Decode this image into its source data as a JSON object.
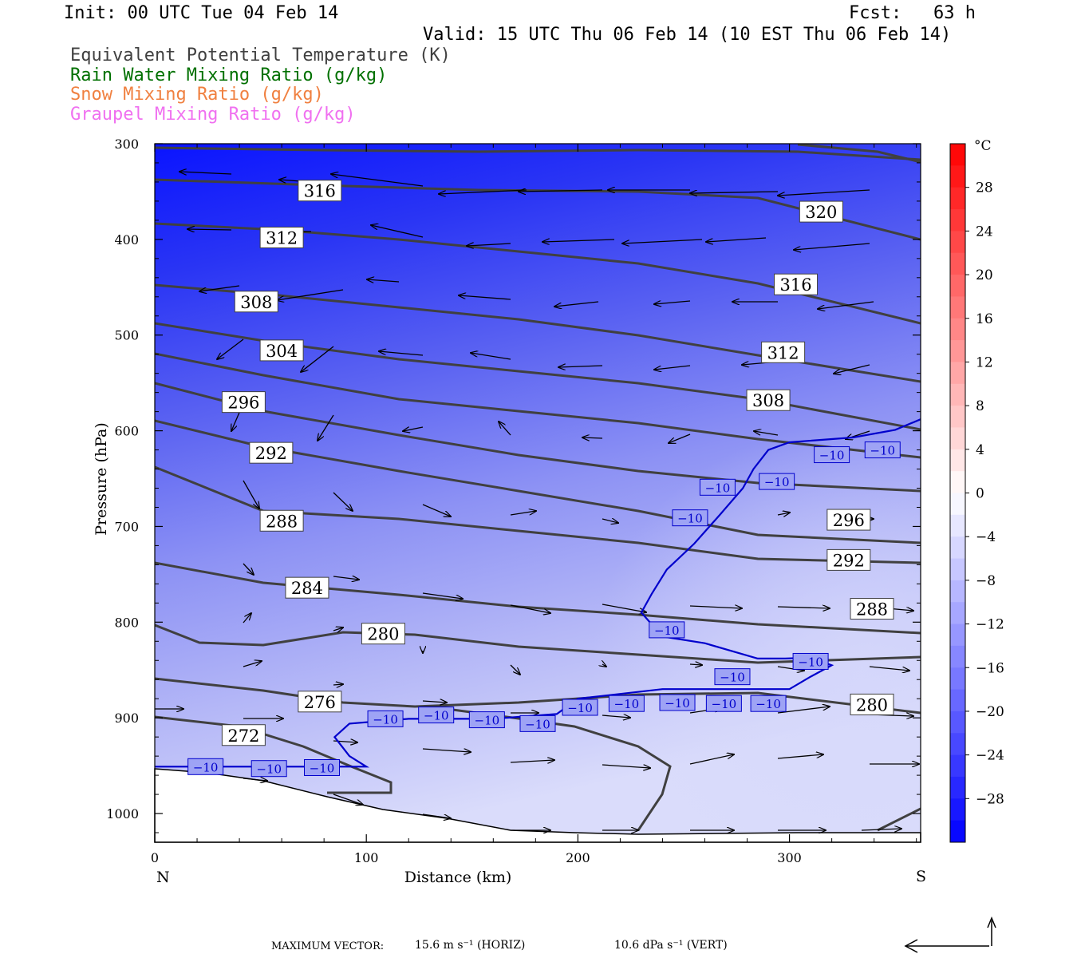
{
  "header": {
    "init": "Init: 00 UTC Tue 04 Feb 14",
    "fcst": "Fcst:   63 h",
    "valid": "Valid: 15 UTC Thu 06 Feb 14 (10 EST Thu 06 Feb 14)",
    "legend": [
      {
        "text": "Equivalent Potential Temperature (K)",
        "color": "#404040"
      },
      {
        "text": "Rain Water Mixing Ratio (g/kg)",
        "color": "#007000"
      },
      {
        "text": "Snow Mixing Ratio (g/kg)",
        "color": "#f08040"
      },
      {
        "text": "Graupel Mixing Ratio (g/kg)",
        "color": "#f070f0"
      }
    ]
  },
  "footer": {
    "max_vector_label": "MAXIMUM VECTOR:",
    "horiz": "15.6 m s⁻¹ (HORIZ)",
    "vert": "10.6 dPa s⁻¹ (VERT)"
  },
  "chart_data": {
    "type": "cross-section",
    "xlabel": "Distance (km)",
    "ylabel": "Pressure (hPa)",
    "x_range": [
      0,
      362
    ],
    "y_range": [
      300,
      1030
    ],
    "x_ticks": [
      0,
      100,
      200,
      300
    ],
    "y_ticks": [
      300,
      400,
      500,
      600,
      700,
      800,
      900,
      1000
    ],
    "x_end_labels": {
      "left": "N",
      "right": "S"
    },
    "colorbar": {
      "unit": "°C",
      "range": [
        -32,
        32
      ],
      "tick_values": [
        -28,
        -24,
        -20,
        -16,
        -12,
        -8,
        -4,
        0,
        4,
        8,
        12,
        16,
        20,
        24,
        28
      ],
      "tick_labels": [
        "−28",
        "−24",
        "−20",
        "−16",
        "−12",
        "−8",
        "−4",
        "0",
        "4",
        "8",
        "12",
        "16",
        "20",
        "24",
        "28"
      ],
      "cold_color": "#0000ff",
      "zero_color": "#ffffff",
      "warm_color": "#ff0000"
    },
    "theta_e_labels": [
      {
        "value": "316",
        "x": 78,
        "p": 349
      },
      {
        "value": "312",
        "x": 60,
        "p": 398
      },
      {
        "value": "308",
        "x": 48,
        "p": 465
      },
      {
        "value": "304",
        "x": 60,
        "p": 516
      },
      {
        "value": "296",
        "x": 42,
        "p": 570
      },
      {
        "value": "292",
        "x": 55,
        "p": 623
      },
      {
        "value": "288",
        "x": 60,
        "p": 694
      },
      {
        "value": "284",
        "x": 72,
        "p": 764
      },
      {
        "value": "280",
        "x": 108,
        "p": 812
      },
      {
        "value": "276",
        "x": 78,
        "p": 883
      },
      {
        "value": "272",
        "x": 42,
        "p": 918
      },
      {
        "value": "320",
        "x": 315,
        "p": 371
      },
      {
        "value": "316",
        "x": 303,
        "p": 447
      },
      {
        "value": "312",
        "x": 297,
        "p": 518
      },
      {
        "value": "308",
        "x": 290,
        "p": 568
      },
      {
        "value": "296",
        "x": 328,
        "p": 693
      },
      {
        "value": "292",
        "x": 328,
        "p": 735
      },
      {
        "value": "288",
        "x": 339,
        "p": 786
      },
      {
        "value": "280",
        "x": 339,
        "p": 886
      }
    ],
    "isotherm_label": "−10",
    "isotherm_m10": [
      [
        [
          0,
          951
        ],
        [
          100,
          951
        ],
        [
          92,
          940
        ],
        [
          85,
          920
        ],
        [
          92,
          906
        ],
        [
          120,
          901
        ],
        [
          160,
          901
        ],
        [
          190,
          896
        ],
        [
          200,
          880
        ],
        [
          240,
          870
        ],
        [
          300,
          870
        ],
        [
          310,
          857
        ],
        [
          320,
          845
        ],
        [
          310,
          837
        ],
        [
          298,
          838
        ],
        [
          285,
          838
        ],
        [
          260,
          822
        ],
        [
          240,
          815
        ],
        [
          230,
          790
        ],
        [
          235,
          770
        ],
        [
          242,
          745
        ],
        [
          255,
          718
        ],
        [
          267,
          688
        ],
        [
          278,
          660
        ],
        [
          283,
          640
        ],
        [
          290,
          620
        ],
        [
          300,
          612
        ],
        [
          330,
          607
        ],
        [
          350,
          599
        ],
        [
          362,
          588
        ]
      ]
    ],
    "isotherm_label_positions": [
      [
        24,
        951
      ],
      [
        54,
        953
      ],
      [
        79,
        952
      ],
      [
        109,
        901
      ],
      [
        133,
        897
      ],
      [
        157,
        902
      ],
      [
        181,
        906
      ],
      [
        201,
        889
      ],
      [
        223,
        885
      ],
      [
        247,
        884
      ],
      [
        269,
        885
      ],
      [
        290,
        885
      ],
      [
        273,
        857
      ],
      [
        310,
        841
      ],
      [
        242,
        808
      ],
      [
        253,
        691
      ],
      [
        266,
        659
      ],
      [
        294,
        653
      ],
      [
        320,
        625
      ],
      [
        344,
        620
      ]
    ]
  }
}
